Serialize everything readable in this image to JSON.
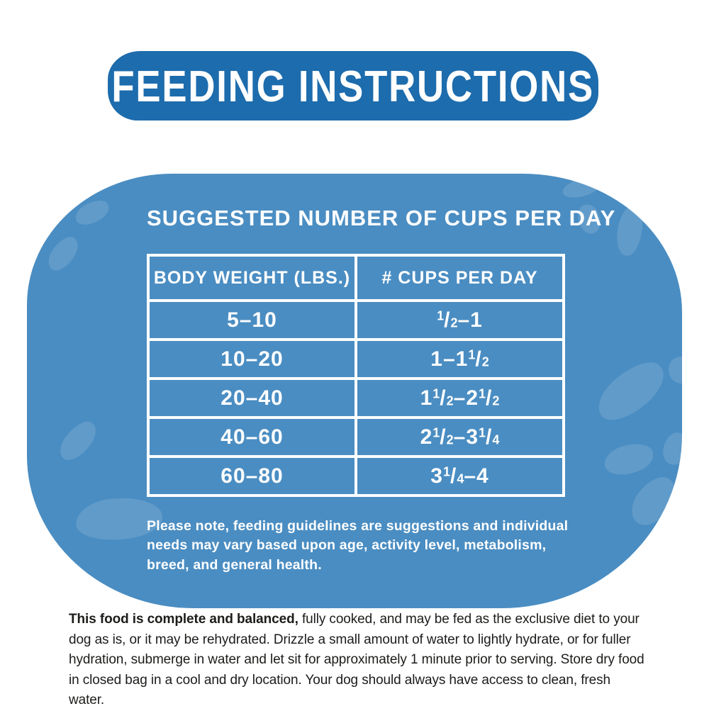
{
  "colors": {
    "banner_blue": "#1d6cad",
    "panel_blue": "#4a8dc2",
    "kibble_highlight": "rgba(255,255,255,0.13)",
    "table_border_white": "#ffffff",
    "footer_text": "#1c1c1a"
  },
  "banner": {
    "title": "FEEDING INSTRUCTIONS"
  },
  "panel": {
    "heading": "SUGGESTED NUMBER OF CUPS PER DAY",
    "table": {
      "columns": [
        "BODY WEIGHT (LBS.)",
        "# CUPS PER DAY"
      ],
      "rows": [
        {
          "weight": "5–10",
          "cups": "{1/2}–1"
        },
        {
          "weight": "10–20",
          "cups": "1–1{1/2}"
        },
        {
          "weight": "20–40",
          "cups": "1{1/2}–2{1/2}"
        },
        {
          "weight": "40–60",
          "cups": "2{1/2}–3{1/4}"
        },
        {
          "weight": "60–80",
          "cups": "3{1/4}–4"
        }
      ]
    },
    "note": "Please note, feeding guidelines are suggestions and individual needs may vary based upon age, activity level, metabolism, breed, and general health."
  },
  "footer": {
    "bold_intro": "This food is complete and balanced,",
    "body": " fully cooked, and may be fed as the exclusive diet to your dog as is, or it may be rehydrated. Drizzle a small amount of water to lightly hydrate, or for fuller hydration, submerge in water and let sit for approximately 1 minute prior to serving. Store dry food in closed bag in a cool and dry location. Your dog should always have access to clean, fresh water."
  }
}
